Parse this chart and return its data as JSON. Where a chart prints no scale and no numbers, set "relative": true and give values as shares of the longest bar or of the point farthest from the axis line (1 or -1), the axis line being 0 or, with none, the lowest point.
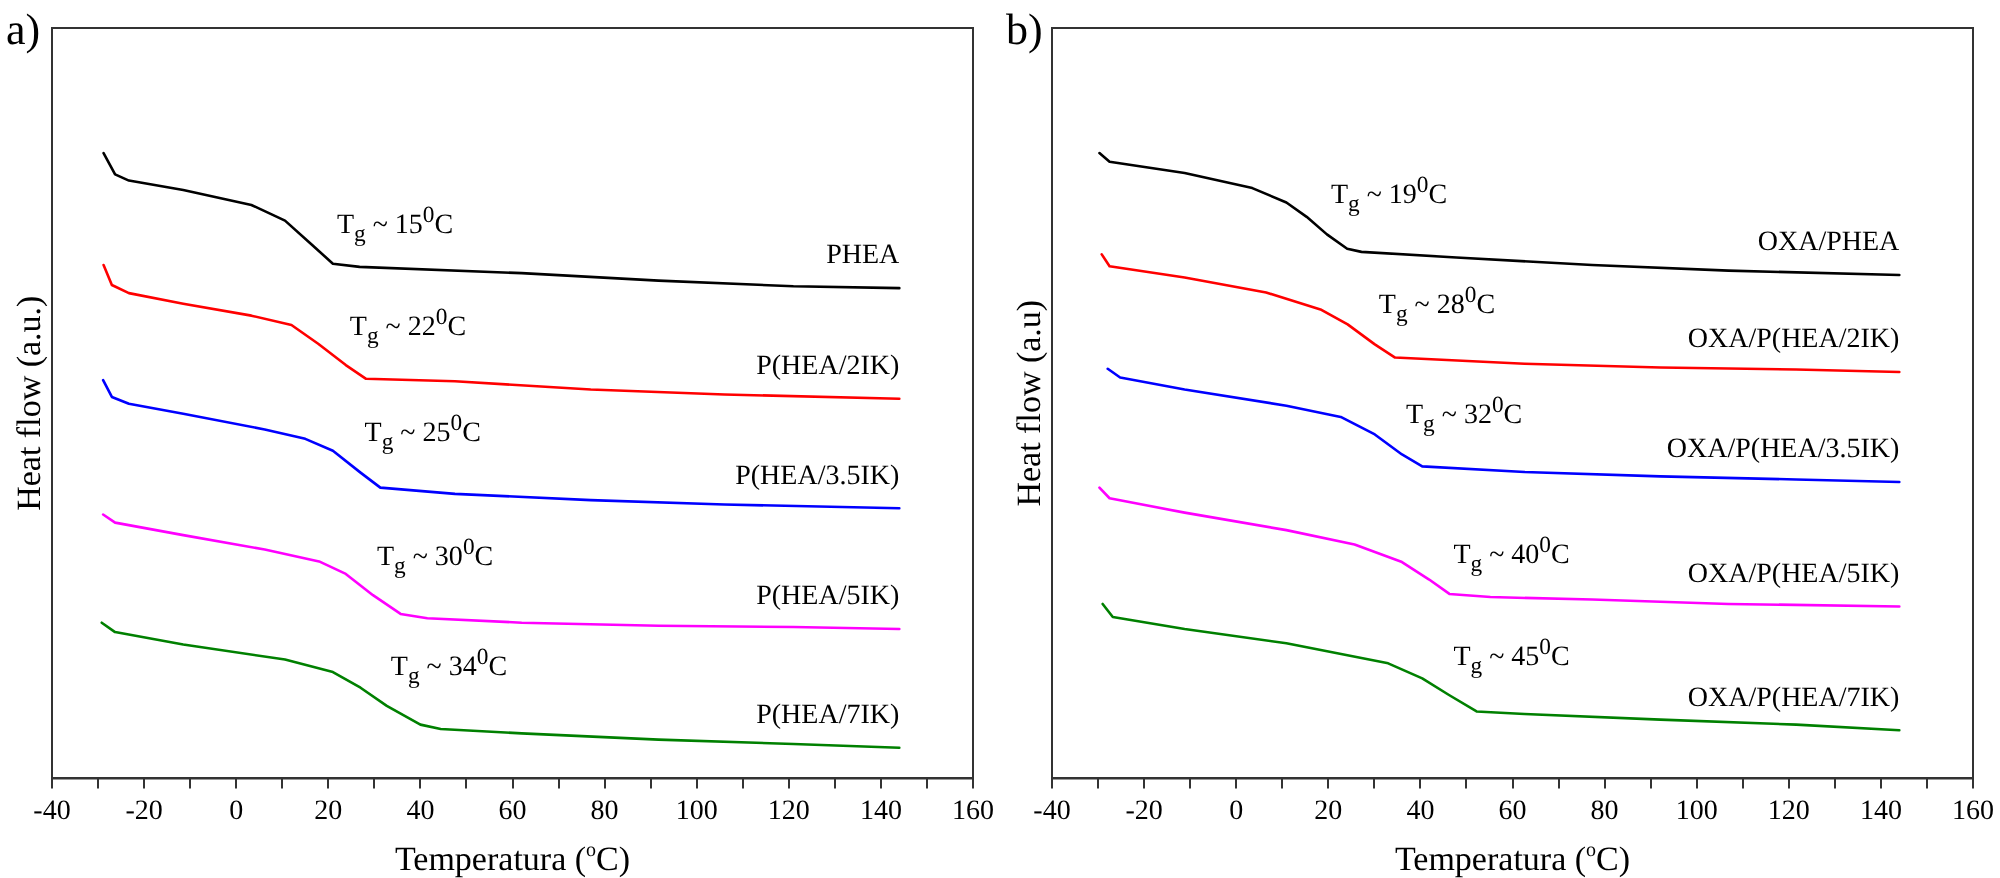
{
  "chart_data": [
    {
      "type": "line",
      "title": "a)",
      "xlabel": "Temperatura ($^{o}$C)",
      "ylabel": "Heat flow (a.u.)",
      "relative": true,
      "grid": false,
      "legend": false,
      "marker": "none",
      "line_style": "solid",
      "xlim": [
        -40,
        160
      ],
      "xticks": [
        -40,
        {
          "value": -30,
          "label": null
        },
        -20,
        {
          "value": -10,
          "label": null
        },
        0,
        {
          "value": 10,
          "label": null
        },
        20,
        {
          "value": 30,
          "label": null
        },
        40,
        {
          "value": 50,
          "label": null
        },
        60,
        {
          "value": 70,
          "label": null
        },
        80,
        {
          "value": 90,
          "label": null
        },
        100,
        {
          "value": 110,
          "label": null
        },
        120,
        {
          "value": 130,
          "label": null
        },
        140,
        {
          "value": 150,
          "label": null
        },
        160
      ],
      "series": [
        {
          "name": "PHEA",
          "color": "#000000",
          "x": [
            -28.8,
            -26.3,
            -23.3,
            -11.5,
            3.3,
            10.6,
            16.5,
            21,
            26.8,
            62,
            91.7,
            121,
            144
          ],
          "values": [
            1.0,
            0.966,
            0.956,
            0.941,
            0.917,
            0.892,
            0.853,
            0.823,
            0.818,
            0.808,
            0.796,
            0.787,
            0.784
          ]
        },
        {
          "name": "P(HEA/2IK)",
          "color": "#ff0000",
          "x": [
            -28.8,
            -27,
            -23.3,
            -11.5,
            3.3,
            12,
            17.8,
            23.8,
            28.2,
            47.5,
            77,
            106,
            144
          ],
          "values": [
            0.821,
            0.789,
            0.776,
            0.759,
            0.74,
            0.725,
            0.695,
            0.661,
            0.639,
            0.635,
            0.622,
            0.614,
            0.607
          ]
        },
        {
          "name": "P(HEA/3.5IK)",
          "color": "#0000ff",
          "x": [
            -28.9,
            -27,
            -23.3,
            -11.5,
            6.2,
            15,
            21,
            27,
            31.3,
            47.5,
            77,
            106,
            144
          ],
          "values": [
            0.637,
            0.61,
            0.599,
            0.583,
            0.558,
            0.543,
            0.524,
            0.489,
            0.465,
            0.455,
            0.445,
            0.438,
            0.432
          ]
        },
        {
          "name": "P(HEA/5IK)",
          "color": "#ff00ff",
          "x": [
            -28.9,
            -26.3,
            -11.5,
            6.2,
            18,
            23.8,
            29.7,
            35.7,
            41.5,
            62,
            91.7,
            121,
            144
          ],
          "values": [
            0.422,
            0.409,
            0.389,
            0.366,
            0.347,
            0.327,
            0.293,
            0.263,
            0.256,
            0.249,
            0.244,
            0.242,
            0.239
          ]
        },
        {
          "name": "P(HEA/7IK)",
          "color": "#008000",
          "x": [
            -29.2,
            -26.3,
            -11.5,
            10.6,
            21,
            27,
            32.7,
            40,
            44.4,
            62,
            91.7,
            121,
            144
          ],
          "values": [
            0.249,
            0.234,
            0.214,
            0.19,
            0.17,
            0.145,
            0.116,
            0.086,
            0.079,
            0.072,
            0.062,
            0.055,
            0.049
          ]
        }
      ],
      "annotations": [
        "T$_{g}$ ~ 15$^{0}$C",
        "T$_{g}$ ~ 22$^{0}$C",
        "T$_{g}$ ~ 25$^{0}$C",
        "T$_{g}$ ~ 30$^{0}$C",
        "T$_{g}$ ~ 34$^{0}$C"
      ]
    },
    {
      "type": "line",
      "title": "b)",
      "xlabel": "Temperatura ($^{o}$C)",
      "ylabel": "Heat flow (a.u)",
      "relative": true,
      "grid": false,
      "legend": false,
      "marker": "none",
      "line_style": "solid",
      "xlim": [
        -40,
        160
      ],
      "xticks": [
        -40,
        {
          "value": -30,
          "label": null
        },
        -20,
        {
          "value": -10,
          "label": null
        },
        0,
        {
          "value": 10,
          "label": null
        },
        20,
        {
          "value": 30,
          "label": null
        },
        40,
        {
          "value": 50,
          "label": null
        },
        60,
        {
          "value": 70,
          "label": null
        },
        80,
        {
          "value": 90,
          "label": null
        },
        100,
        {
          "value": 110,
          "label": null
        },
        120,
        {
          "value": 130,
          "label": null
        },
        140,
        {
          "value": 150,
          "label": null
        },
        160
      ],
      "series": [
        {
          "name": "OXA/PHEA",
          "color": "#000000",
          "x": [
            -29.7,
            -27.5,
            -11.2,
            3.5,
            10.9,
            15.3,
            19.7,
            24.1,
            27.2,
            47.8,
            77.3,
            106.9,
            144
          ],
          "values": [
            1.0,
            0.986,
            0.968,
            0.944,
            0.921,
            0.898,
            0.87,
            0.847,
            0.842,
            0.833,
            0.821,
            0.812,
            0.805
          ]
        },
        {
          "name": "OXA/P(HEA/2IK)",
          "color": "#ff0000",
          "x": [
            -29.2,
            -27.5,
            -11.2,
            6.5,
            18.3,
            24.2,
            30.1,
            34.5,
            62.6,
            92.1,
            121.6,
            144
          ],
          "values": [
            0.838,
            0.819,
            0.801,
            0.777,
            0.75,
            0.726,
            0.694,
            0.673,
            0.663,
            0.657,
            0.654,
            0.65
          ]
        },
        {
          "name": "OXA/P(HEA/3.5IK)",
          "color": "#0000ff",
          "x": [
            -27.9,
            -25.2,
            -11.2,
            10.9,
            22.7,
            30.1,
            36,
            40.4,
            62.6,
            92.1,
            121.6,
            144
          ],
          "values": [
            0.655,
            0.641,
            0.622,
            0.596,
            0.578,
            0.55,
            0.518,
            0.499,
            0.49,
            0.483,
            0.478,
            0.474
          ]
        },
        {
          "name": "OXA/P(HEA/5IK)",
          "color": "#ff00ff",
          "x": [
            -29.7,
            -27.5,
            -11.2,
            10.9,
            25.7,
            36,
            41.9,
            46.3,
            55.2,
            77.3,
            106.9,
            144
          ],
          "values": [
            0.465,
            0.448,
            0.425,
            0.397,
            0.374,
            0.346,
            0.318,
            0.295,
            0.29,
            0.286,
            0.279,
            0.275
          ]
        },
        {
          "name": "OXA/P(HEA/7IK)",
          "color": "#008000",
          "x": [
            -29,
            -26.8,
            -11.2,
            10.9,
            33,
            40.4,
            46.3,
            52.2,
            62.6,
            92.1,
            121.6,
            144
          ],
          "values": [
            0.279,
            0.258,
            0.239,
            0.216,
            0.184,
            0.16,
            0.133,
            0.107,
            0.103,
            0.094,
            0.086,
            0.077
          ]
        }
      ],
      "annotations": [
        "T$_{g}$ ~ 19$^{0}$C",
        "T$_{g}$ ~ 28$^{0}$C",
        "T$_{g}$ ~ 32$^{0}$C",
        "T$_{g}$ ~ 40$^{0}$C",
        "T$_{g}$ ~ 45$^{0}$C"
      ]
    }
  ]
}
